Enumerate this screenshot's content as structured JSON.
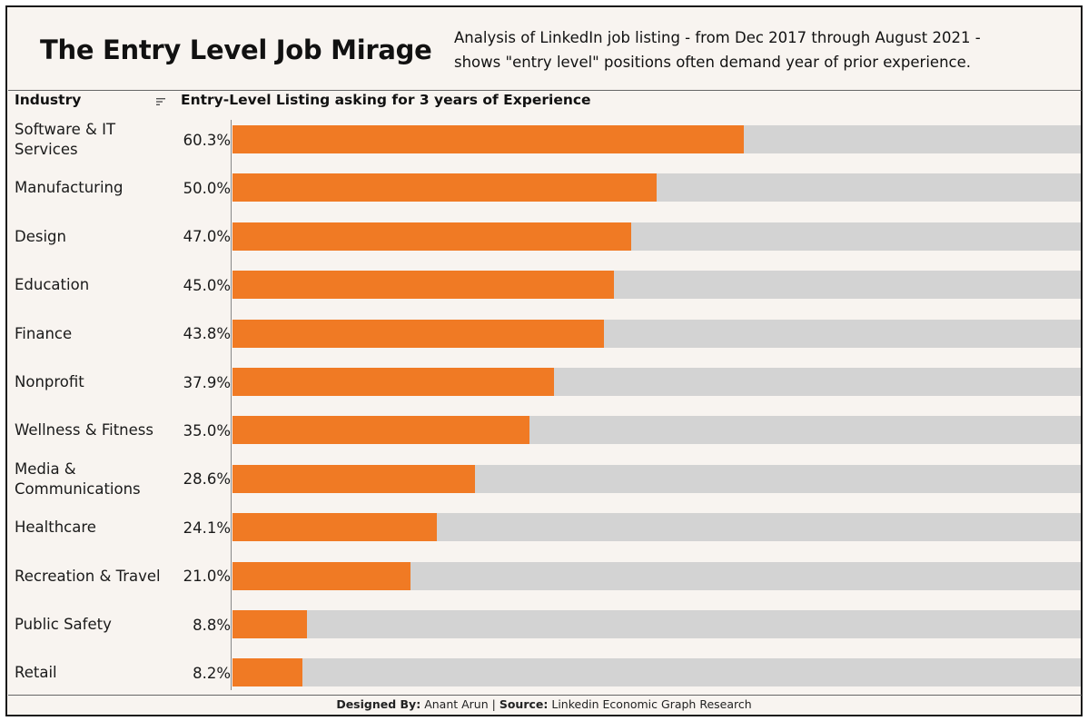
{
  "header": {
    "title": "The Entry Level Job Mirage",
    "subtitle_line1": "Analysis of LinkedIn job listing - from Dec 2017 through August 2021 -",
    "subtitle_line2": "shows \"entry level\" positions often demand year of prior experience."
  },
  "columns": {
    "industry": "Industry",
    "measure": "Entry-Level Listing asking for 3 years of Experience"
  },
  "icons": {
    "sort": "sort-descending-icon"
  },
  "colors": {
    "bar": "#f07a24",
    "track": "#d3d3d3",
    "background": "#f8f4f0"
  },
  "footer": {
    "designed_label": "Designed By:",
    "designed_value": "Anant Arun",
    "separator": "|",
    "source_label": "Source:",
    "source_value": "Linkedin Economic Graph Research"
  },
  "chart_data": {
    "type": "bar",
    "orientation": "horizontal",
    "xlim": [
      0,
      100
    ],
    "unit": "%",
    "categories": [
      "Software & IT Services",
      "Manufacturing",
      "Design",
      "Education",
      "Finance",
      "Nonprofit",
      "Wellness & Fitness",
      "Media & Communications",
      "Healthcare",
      "Recreation & Travel",
      "Public Safety",
      "Retail"
    ],
    "values": [
      60.3,
      50.0,
      47.0,
      45.0,
      43.8,
      37.9,
      35.0,
      28.6,
      24.1,
      21.0,
      8.8,
      8.2
    ],
    "value_labels": [
      "60.3%",
      "50.0%",
      "47.0%",
      "45.0%",
      "43.8%",
      "37.9%",
      "35.0%",
      "28.6%",
      "24.1%",
      "21.0%",
      "8.8%",
      "8.2%"
    ]
  }
}
